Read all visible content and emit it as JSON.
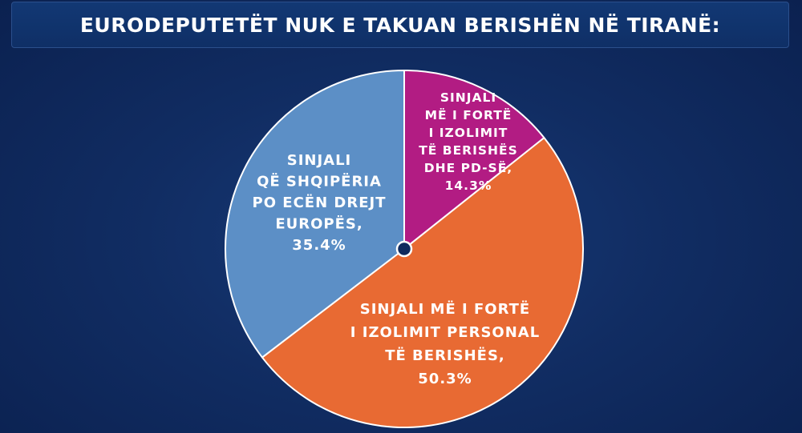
{
  "header": {
    "title": "EURODEPUTETËT NUK E TAKUAN BERISHËN NË TIRANË:"
  },
  "chart_data": {
    "type": "pie",
    "title": "EURODEPUTETËT NUK E TAKUAN BERISHËN NË TIRANË:",
    "start_angle_deg": 0,
    "direction": "clockwise",
    "slices": [
      {
        "label_lines": [
          "SINJALI",
          "MË I FORTË",
          "I IZOLIMIT",
          "TË BERISHËS",
          "DHE PD-SË,",
          "14.3%"
        ],
        "value": 14.3,
        "color": "#b21c83"
      },
      {
        "label_lines": [
          "SINJALI MË I FORTË",
          "I IZOLIMIT PERSONAL",
          "TË BERISHËS,",
          "50.3%"
        ],
        "value": 50.3,
        "color": "#e86a33"
      },
      {
        "label_lines": [
          "SINJALI",
          "QË SHQIPËRIA",
          "PO ECËN DREJT",
          "EUROPËS,",
          "35.4%"
        ],
        "value": 35.4,
        "color": "#5c8fc6"
      }
    ]
  }
}
